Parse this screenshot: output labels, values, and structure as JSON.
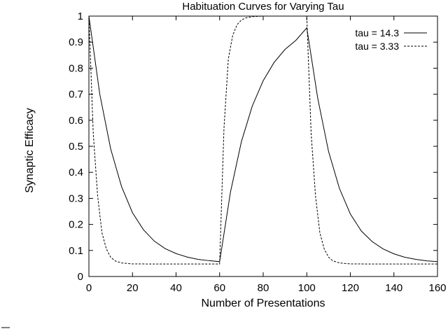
{
  "chart_data": {
    "type": "line",
    "title": "Habituation Curves for Varying Tau",
    "xlabel": "Number of Presentations",
    "ylabel": "Synaptic Efficacy",
    "xlim": [
      0,
      160
    ],
    "ylim": [
      0,
      1
    ],
    "xticks": [
      "0",
      "20",
      "40",
      "60",
      "80",
      "100",
      "120",
      "140",
      "160"
    ],
    "yticks": [
      "0",
      "0.1",
      "0.2",
      "0.3",
      "0.4",
      "0.5",
      "0.6",
      "0.7",
      "0.8",
      "0.9",
      "1"
    ],
    "grid": false,
    "legend_position": "top-right",
    "series": [
      {
        "name": "tau = 14.3",
        "style": "solid",
        "x": [
          0,
          5,
          10,
          15,
          20,
          25,
          30,
          35,
          40,
          45,
          50,
          55,
          60,
          65,
          70,
          75,
          80,
          85,
          90,
          95,
          100,
          105,
          110,
          115,
          120,
          125,
          130,
          135,
          140,
          145,
          150,
          155,
          160
        ],
        "y": [
          1.0,
          0.7,
          0.49,
          0.345,
          0.245,
          0.18,
          0.136,
          0.107,
          0.088,
          0.075,
          0.066,
          0.061,
          0.057,
          0.325,
          0.518,
          0.655,
          0.752,
          0.822,
          0.872,
          0.907,
          0.955,
          0.686,
          0.48,
          0.338,
          0.24,
          0.175,
          0.134,
          0.106,
          0.087,
          0.074,
          0.066,
          0.06,
          0.057
        ]
      },
      {
        "name": "tau = 3.33",
        "style": "dashed",
        "x": [
          0,
          2,
          4,
          6,
          8,
          10,
          12,
          15,
          20,
          30,
          40,
          50,
          60,
          62,
          64,
          66,
          68,
          70,
          72,
          75,
          80,
          90,
          100,
          102,
          104,
          106,
          108,
          110,
          112,
          115,
          120,
          130,
          140,
          150,
          160
        ],
        "y": [
          1.0,
          0.55,
          0.31,
          0.168,
          0.106,
          0.074,
          0.06,
          0.052,
          0.0485,
          0.048,
          0.048,
          0.048,
          0.048,
          0.57,
          0.835,
          0.926,
          0.967,
          0.985,
          0.993,
          0.998,
          1.0,
          1.0,
          1.0,
          0.55,
          0.31,
          0.168,
          0.106,
          0.074,
          0.06,
          0.052,
          0.0485,
          0.048,
          0.048,
          0.048,
          0.048
        ]
      }
    ]
  }
}
